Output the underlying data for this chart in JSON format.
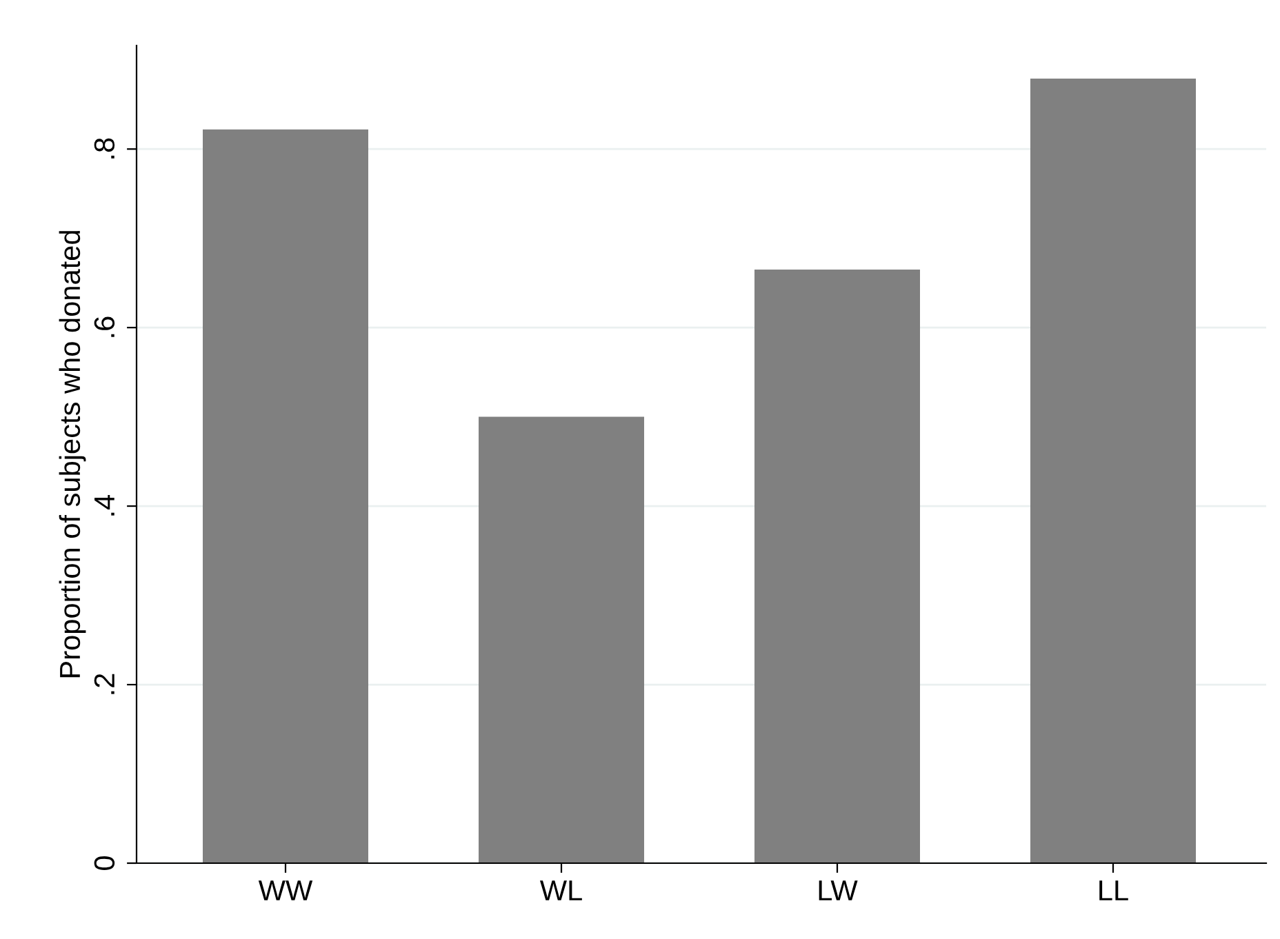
{
  "chart_data": {
    "type": "bar",
    "ylabel": "Proportion of subjects who donated",
    "categories": [
      "WW",
      "WL",
      "LW",
      "LL"
    ],
    "values": [
      0.822,
      0.5,
      0.665,
      0.879
    ],
    "color": "#808080",
    "ylim": [
      0,
      0.916
    ],
    "yticks": [
      0,
      {
        "value": 0.2,
        "label": ".2"
      },
      {
        "value": 0.4,
        "label": ".4"
      },
      {
        "value": 0.6,
        "label": ".6"
      },
      {
        "value": 0.8,
        "label": ".8"
      }
    ],
    "grid": "y"
  }
}
